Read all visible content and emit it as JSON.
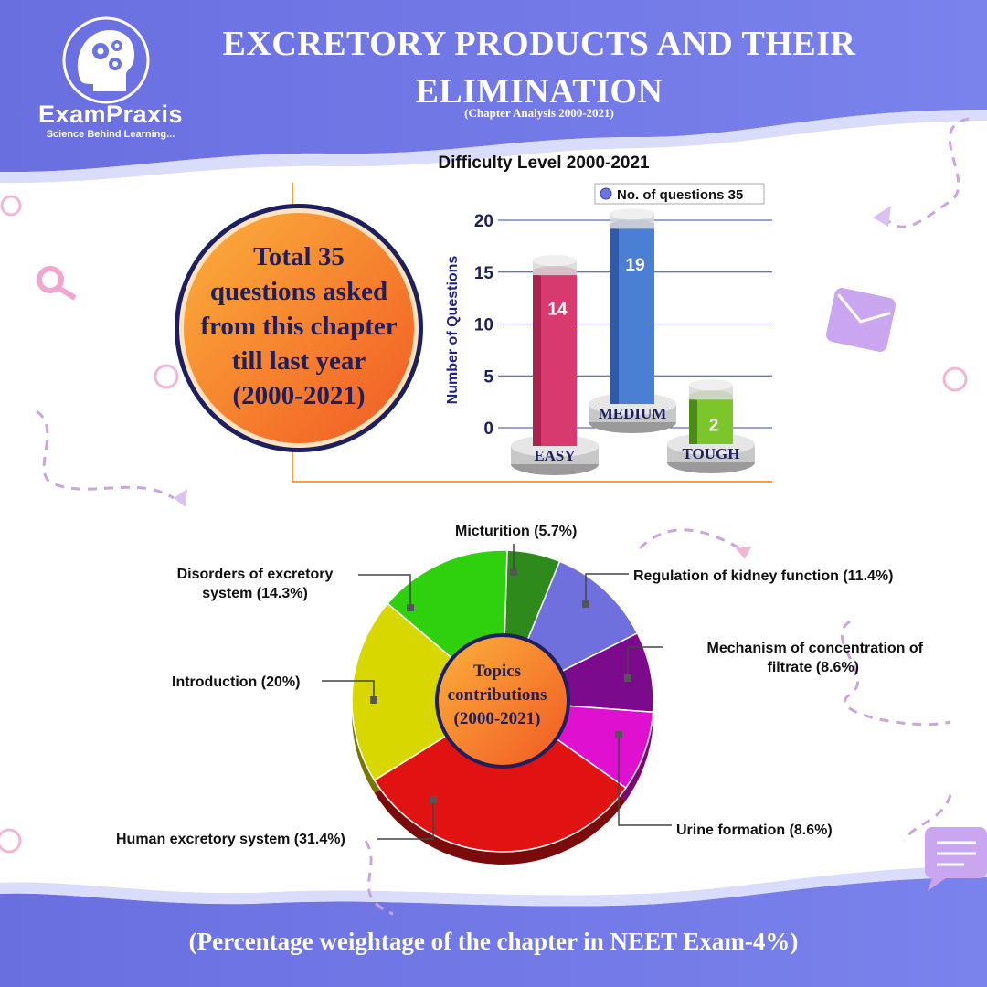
{
  "header": {
    "title_line1": "EXCRETORY PRODUCTS AND THEIR",
    "title_line2": "ELIMINATION",
    "subtitle": "(Chapter Analysis 2000-2021)",
    "brand": "ExamPraxis",
    "tagline": "Science Behind Learning..."
  },
  "summary": {
    "line1": "Total 35",
    "line2": "questions asked",
    "line3": "from this chapter",
    "line4": "till last year",
    "line5": "(2000-2021)"
  },
  "donut_center": {
    "line1": "Topics",
    "line2": "contributions",
    "line3": "(2000-2021)"
  },
  "footer": {
    "text": "(Percentage weightage of the chapter in NEET Exam-4%)"
  },
  "colors": {
    "header_band": "#6b74e3",
    "easy": "#d83a70",
    "medium": "#4b7fd3",
    "tough": "#7cc52a",
    "circle_orange": "#f7931e",
    "text_navy": "#1d1f5e"
  },
  "chart_data": [
    {
      "type": "bar",
      "title": "Difficulty Level 2000-2021",
      "categories": [
        "EASY",
        "MEDIUM",
        "TOUGH"
      ],
      "series": [
        {
          "name": "No. of questions 35",
          "values": [
            14,
            19,
            2
          ]
        }
      ],
      "ylabel": "Number of Questions",
      "xlabel": "",
      "ylim": [
        0,
        20
      ],
      "yticks": [
        0,
        5,
        10,
        15,
        20
      ],
      "grid": true,
      "legend": "top-right"
    },
    {
      "type": "pie",
      "title": "Topics contributions (2000-2021)",
      "slices": [
        {
          "label": "Micturition",
          "display": "Micturition (5.7%)",
          "value": 5.7,
          "color": "#2e8a1a"
        },
        {
          "label": "Regulation of kidney function",
          "display": "Regulation of kidney function (11.4%)",
          "value": 11.4,
          "color": "#6f6fdd"
        },
        {
          "label": "Mechanism of concentration of filtrate",
          "display_line1": "Mechanism of concentration of",
          "display_line2": "filtrate (8.6%)",
          "value": 8.6,
          "color": "#7b0a8c"
        },
        {
          "label": "Urine formation",
          "display": "Urine formation (8.6%)",
          "value": 8.6,
          "color": "#e010d0"
        },
        {
          "label": "Human excretory system",
          "display": "Human excretory system (31.4%)",
          "value": 31.4,
          "color": "#e01212"
        },
        {
          "label": "Introduction",
          "display": "Introduction (20%)",
          "value": 20,
          "color": "#d8d800"
        },
        {
          "label": "Disorders of excretory system",
          "display_line1": "Disorders of excretory",
          "display_line2": "system (14.3%)",
          "value": 14.3,
          "color": "#2fd10f"
        }
      ]
    }
  ]
}
